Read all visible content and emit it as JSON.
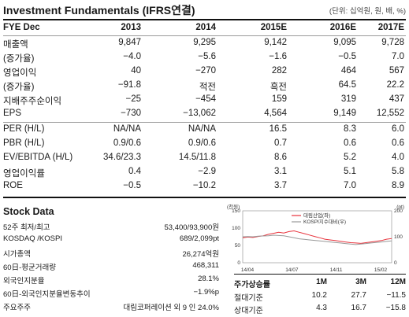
{
  "header": {
    "title": "Investment Fundamentals (IFRS연결)",
    "unit": "(단위: 십억원, 원, 배, %)"
  },
  "fundamentals": {
    "columns": [
      "FYE Dec",
      "2013",
      "2014",
      "2015E",
      "2016E",
      "2017E"
    ],
    "group1": [
      {
        "label": "매출액",
        "values": [
          "9,847",
          "9,295",
          "9,142",
          "9,095",
          "9,728"
        ]
      },
      {
        "label": "(증가율)",
        "values": [
          "−4.0",
          "−5.6",
          "−1.6",
          "−0.5",
          "7.0"
        ]
      },
      {
        "label": "영업이익",
        "values": [
          "40",
          "−270",
          "282",
          "464",
          "567"
        ]
      },
      {
        "label": "(증가율)",
        "values": [
          "−91.8",
          "적전",
          "흑전",
          "64.5",
          "22.2"
        ]
      },
      {
        "label": "지배주주순이익",
        "values": [
          "−25",
          "−454",
          "159",
          "319",
          "437"
        ]
      },
      {
        "label": "EPS",
        "values": [
          "−730",
          "−13,062",
          "4,564",
          "9,149",
          "12,552"
        ]
      }
    ],
    "group2": [
      {
        "label": "PER (H/L)",
        "values": [
          "NA/NA",
          "NA/NA",
          "16.5",
          "8.3",
          "6.0"
        ]
      },
      {
        "label": "PBR (H/L)",
        "values": [
          "0.9/0.6",
          "0.9/0.6",
          "0.7",
          "0.6",
          "0.6"
        ]
      },
      {
        "label": "EV/EBITDA (H/L)",
        "values": [
          "34.6/23.3",
          "14.5/11.8",
          "8.6",
          "5.2",
          "4.0"
        ]
      },
      {
        "label": "영업이익률",
        "values": [
          "0.4",
          "−2.9",
          "3.1",
          "5.1",
          "5.8"
        ]
      },
      {
        "label": "ROE",
        "values": [
          "−0.5",
          "−10.2",
          "3.7",
          "7.0",
          "8.9"
        ]
      }
    ]
  },
  "stock_data": {
    "title": "Stock Data",
    "rows": [
      {
        "label": "52주 최저/최고",
        "value": "53,400/93,900원"
      },
      {
        "label": "KOSDAQ /KOSPI",
        "value": "689/2,099pt"
      },
      {
        "label": "시가총액",
        "value": "26,274억원"
      },
      {
        "label": "60日-평균거래량",
        "value": "468,311"
      },
      {
        "label": "외국인지분율",
        "value": "28.1%"
      },
      {
        "label": "60日-외국인지분율변동추이",
        "value": "−1.9%p"
      },
      {
        "label": "주요주주",
        "value": "대림코퍼레이션 외 9 인 24.0%"
      }
    ]
  },
  "chart_data": {
    "type": "line",
    "ylabel_left": "(천원)",
    "ylabel_right": "(pt)",
    "left_ylim": [
      0,
      150
    ],
    "left_ticks": [
      "0",
      "50",
      "100",
      "150"
    ],
    "right_ylim": [
      0,
      200
    ],
    "right_ticks": [
      "0",
      "100",
      "200"
    ],
    "x_ticks": [
      "14/04",
      "14/07",
      "14/11",
      "15/02"
    ],
    "series": [
      {
        "name": "대림산업(좌)",
        "color": "#e8333c",
        "axis": "left",
        "values": [
          72,
          74,
          73,
          76,
          78,
          82,
          85,
          88,
          86,
          90,
          92,
          88,
          84,
          80,
          76,
          72,
          68,
          66,
          64,
          62,
          60,
          58,
          57,
          56,
          58,
          60,
          62,
          64,
          68,
          70
        ]
      },
      {
        "name": "KOSPI지수대비(우)",
        "color": "#999999",
        "axis": "right",
        "values": [
          100,
          101,
          100,
          102,
          103,
          104,
          106,
          105,
          104,
          100,
          96,
          92,
          90,
          88,
          86,
          84,
          82,
          80,
          78,
          76,
          74,
          72,
          70,
          72,
          74,
          76,
          78,
          80,
          82,
          84
        ]
      }
    ]
  },
  "price_perf": {
    "head": [
      "주가상승률",
      "1M",
      "3M",
      "12M"
    ],
    "rows": [
      {
        "label": "절대기준",
        "values": [
          "10.2",
          "27.7",
          "−11.5"
        ]
      },
      {
        "label": "상대기준",
        "values": [
          "4.3",
          "16.7",
          "−15.8"
        ]
      }
    ]
  }
}
